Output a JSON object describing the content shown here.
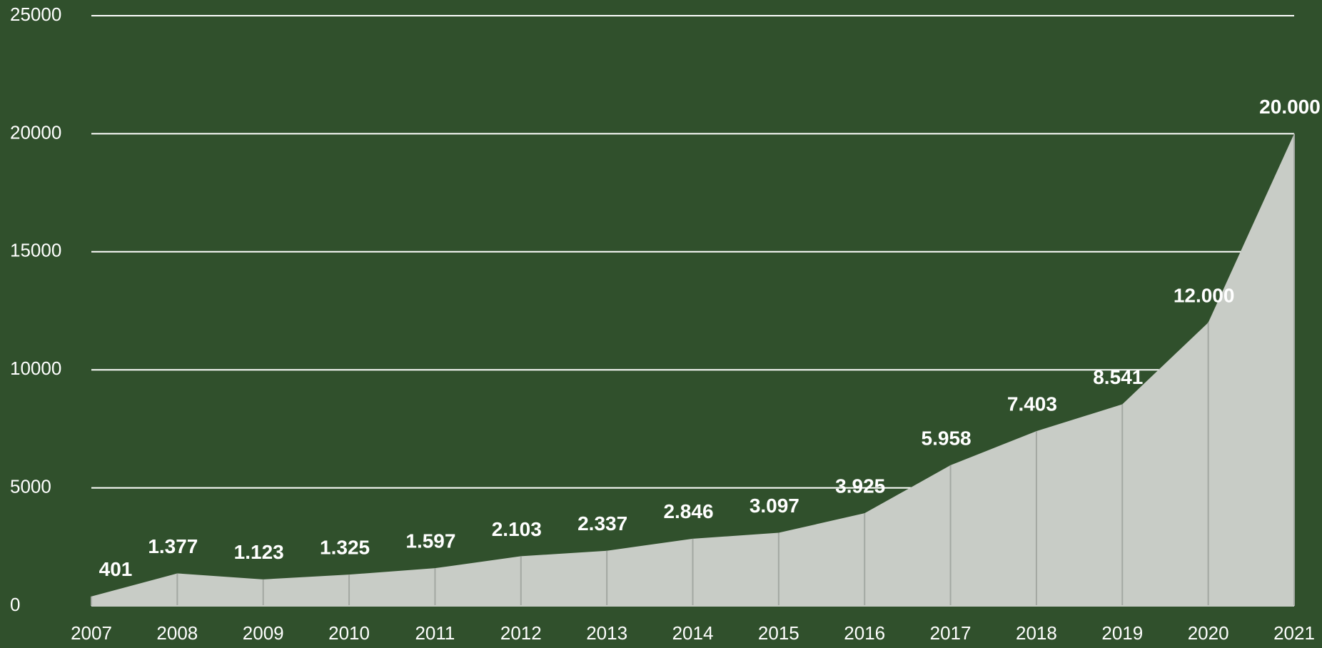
{
  "chart_data": {
    "type": "area",
    "categories": [
      "2007",
      "2008",
      "2009",
      "2010",
      "2011",
      "2012",
      "2013",
      "2014",
      "2015",
      "2016",
      "2017",
      "2018",
      "2019",
      "2020",
      "2021"
    ],
    "values": [
      401,
      1377,
      1123,
      1325,
      1597,
      2103,
      2337,
      2846,
      3097,
      3925,
      5958,
      7403,
      8541,
      12000,
      20000
    ],
    "value_labels": [
      "401",
      "1.377",
      "1.123",
      "1.325",
      "1.597",
      "2.103",
      "2.337",
      "2.846",
      "3.097",
      "3.925",
      "5.958",
      "7.403",
      "8.541",
      "12.000",
      "20.000"
    ],
    "color": "#c8ccc6",
    "ylim": [
      0,
      25000
    ],
    "yticks": [
      0,
      5000,
      10000,
      15000,
      20000,
      25000
    ],
    "grid": true
  }
}
